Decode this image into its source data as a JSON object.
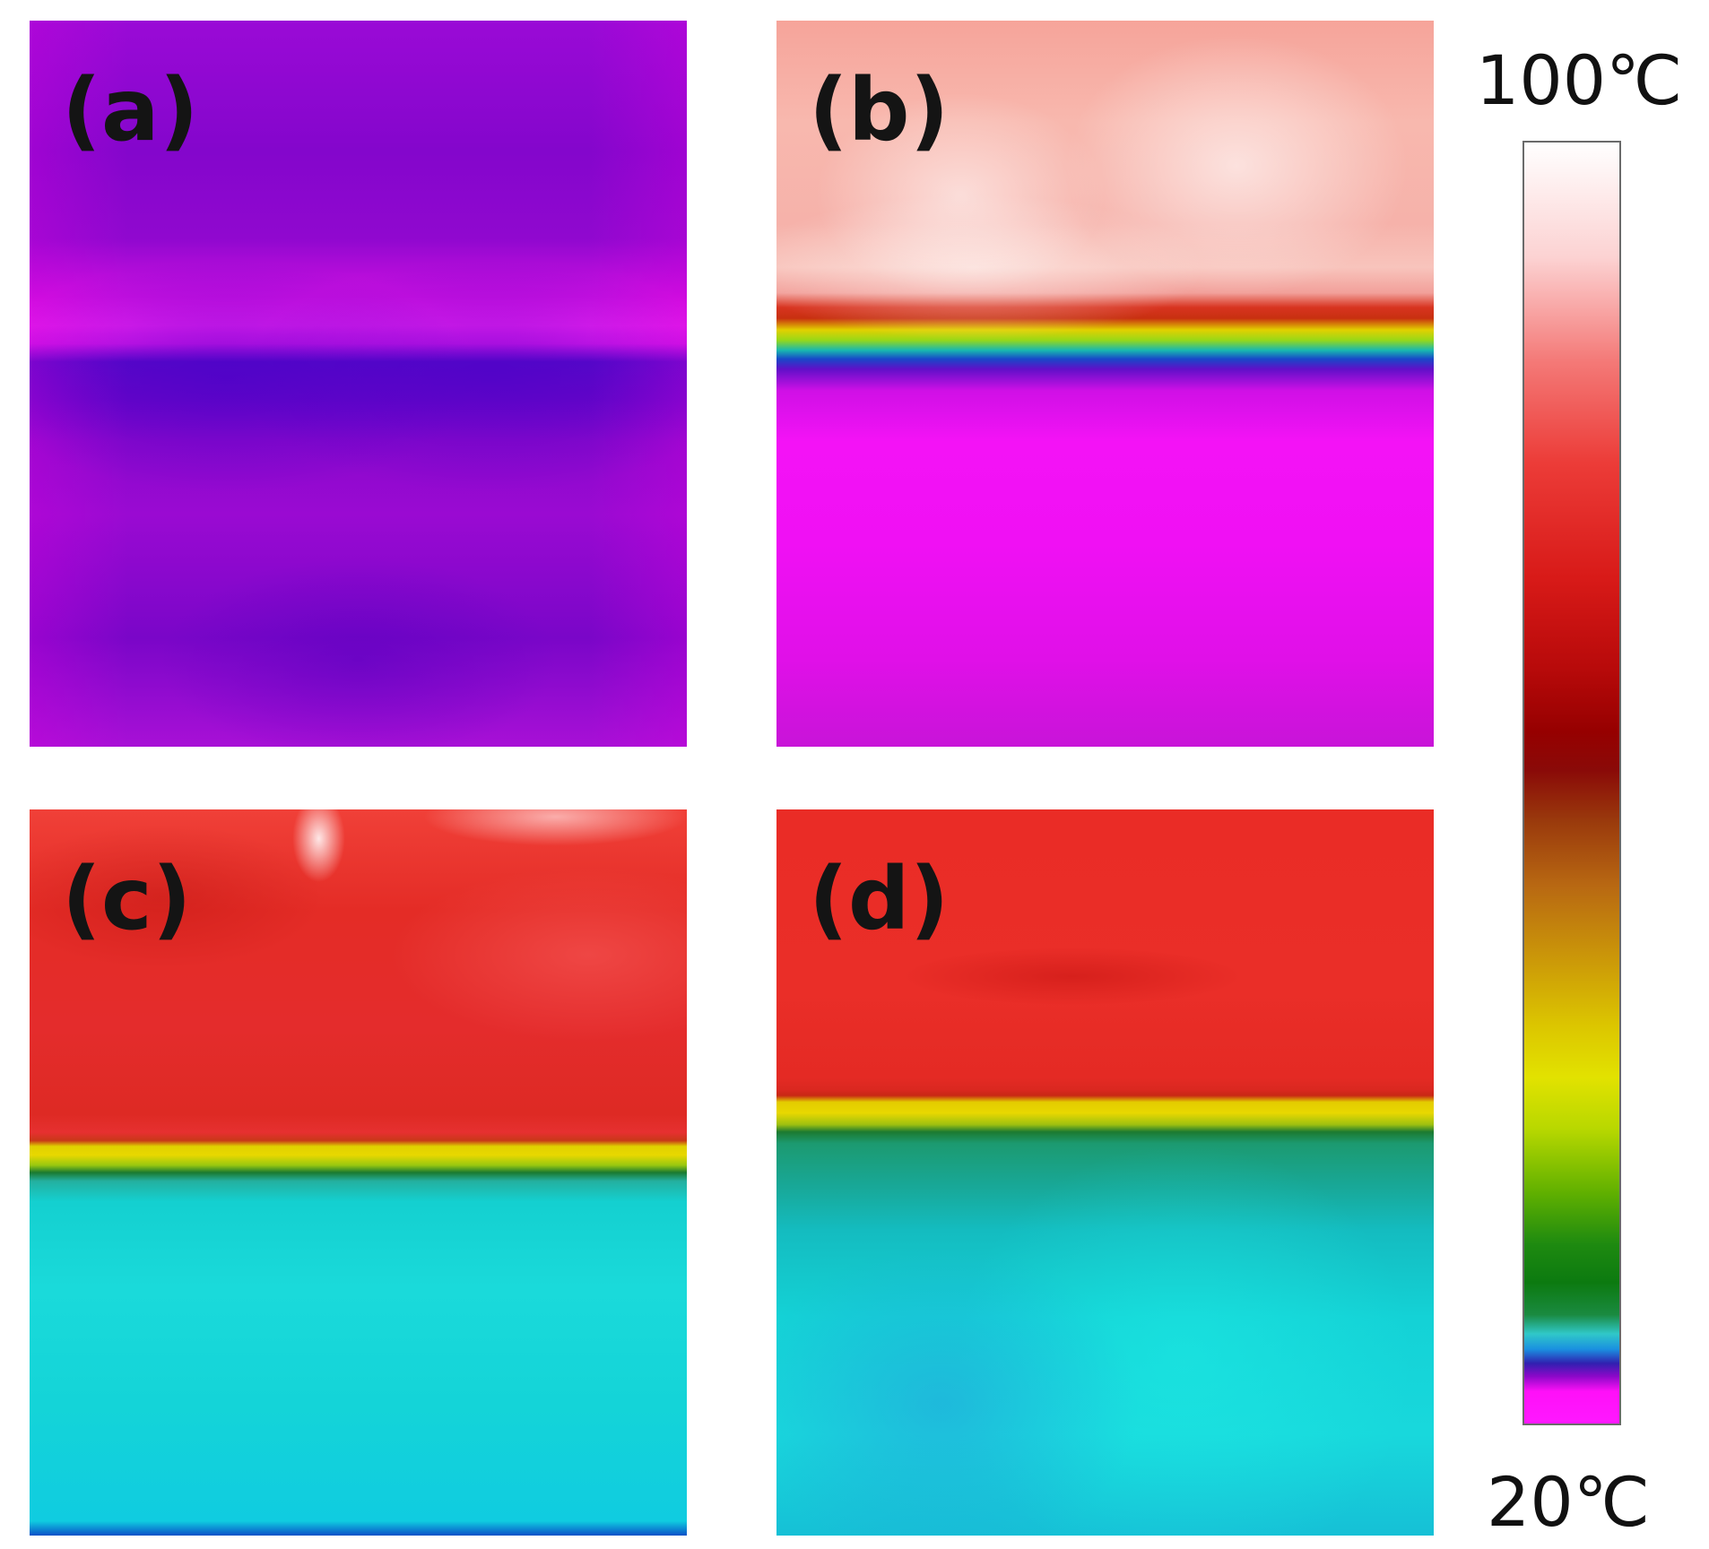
{
  "figure": {
    "panels": [
      {
        "id": "a",
        "label": "(a)"
      },
      {
        "id": "b",
        "label": "(b)"
      },
      {
        "id": "c",
        "label": "(c)"
      },
      {
        "id": "d",
        "label": "(d)"
      }
    ],
    "colorbar": {
      "max_label": "100℃",
      "min_label": "20℃",
      "colors": [
        "#ffffff",
        "#ec3c38",
        "#960000",
        "#cc9a08",
        "#e2e200",
        "#0c7a10",
        "#30c8c8",
        "#3020b0",
        "#ff10f8"
      ]
    }
  }
}
